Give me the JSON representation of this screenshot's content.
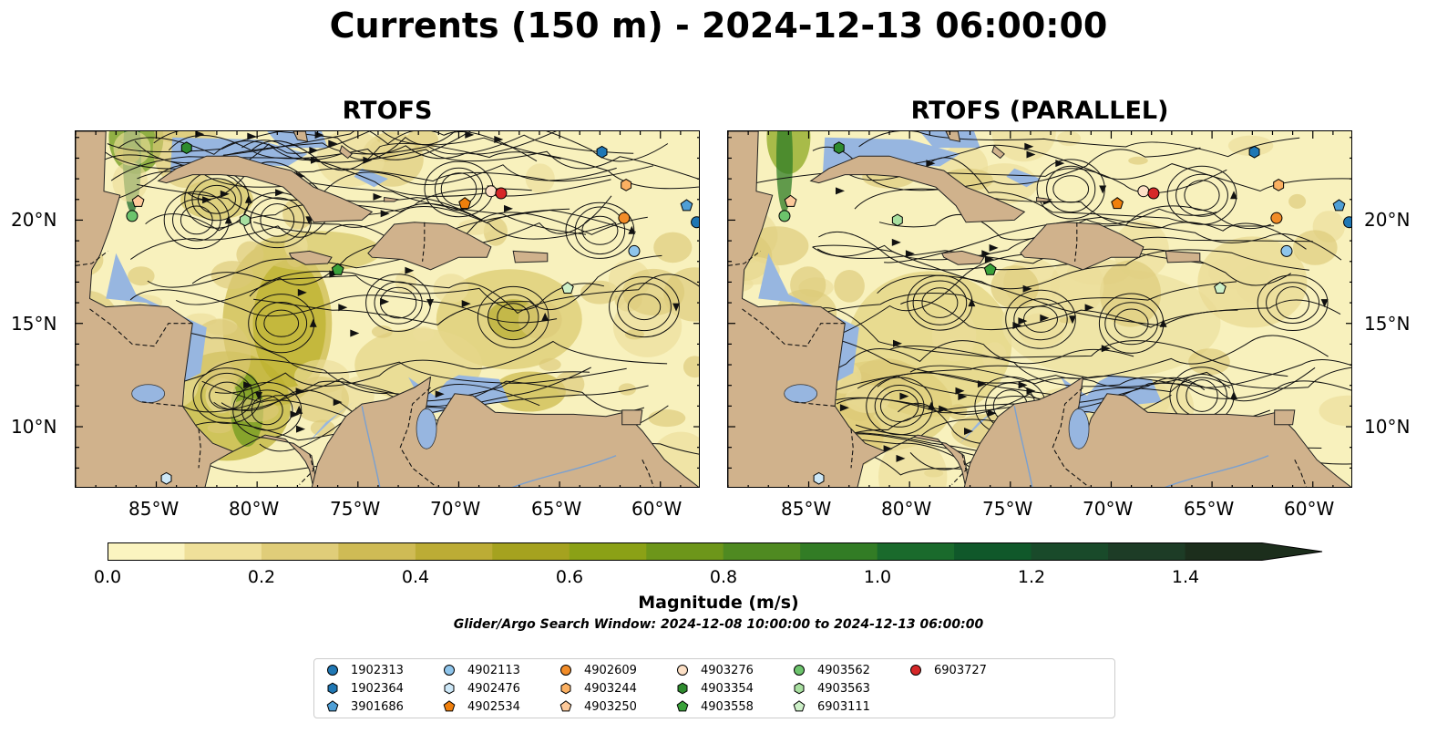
{
  "title": "Currents (150 m) - 2024-12-13 06:00:00",
  "panels": [
    {
      "title": "RTOFS"
    },
    {
      "title": "RTOFS (PARALLEL)"
    }
  ],
  "lat_labels": [
    "20°N",
    "15°N",
    "10°N"
  ],
  "lon_labels": [
    "85°W",
    "80°W",
    "75°W",
    "70°W",
    "65°W",
    "60°W"
  ],
  "map_extent": {
    "lon_min": -89,
    "lon_max": -58,
    "lat_min": 7,
    "lat_max": 24.3
  },
  "colorbar": {
    "label": "Magnitude (m/s)",
    "ticks": [
      "0.0",
      "0.2",
      "0.4",
      "0.6",
      "0.8",
      "1.0",
      "1.2",
      "1.4"
    ],
    "range": [
      0,
      1.5
    ],
    "extend": "max",
    "colors": [
      "#fbf4c0",
      "#efe09a",
      "#e0cd79",
      "#cfbb55",
      "#bcac35",
      "#a5a21f",
      "#8ba116",
      "#6d961a",
      "#4f8a21",
      "#327c25",
      "#1a6a2c",
      "#10582a",
      "#194a2a",
      "#1d3c26",
      "#1c2e1c"
    ]
  },
  "search_window": "Glider/Argo Search Window: 2024-12-08 10:00:00 to 2024-12-13 06:00:00",
  "legend": [
    {
      "id": "1902313",
      "shape": "circle",
      "color": "#1f77b4"
    },
    {
      "id": "1902364",
      "shape": "hexagon",
      "color": "#1f77b4"
    },
    {
      "id": "3901686",
      "shape": "pentagon",
      "color": "#4f9fd6"
    },
    {
      "id": "4902113",
      "shape": "circle",
      "color": "#8ec5ec"
    },
    {
      "id": "4902476",
      "shape": "hexagon",
      "color": "#cde8f8"
    },
    {
      "id": "4902534",
      "shape": "pentagon",
      "color": "#f07f0c"
    },
    {
      "id": "4902609",
      "shape": "circle",
      "color": "#f28c28"
    },
    {
      "id": "4903244",
      "shape": "hexagon",
      "color": "#fbb062"
    },
    {
      "id": "4903250",
      "shape": "pentagon",
      "color": "#fdc99a"
    },
    {
      "id": "4903276",
      "shape": "circle",
      "color": "#fde0c6"
    },
    {
      "id": "4903354",
      "shape": "hexagon",
      "color": "#2e8b2e"
    },
    {
      "id": "4903558",
      "shape": "pentagon",
      "color": "#3aa23a"
    },
    {
      "id": "4903562",
      "shape": "circle",
      "color": "#6cc46c"
    },
    {
      "id": "4903563",
      "shape": "hexagon",
      "color": "#a8e0a0"
    },
    {
      "id": "6903111",
      "shape": "pentagon",
      "color": "#cdf0c8"
    },
    {
      "id": "6903727",
      "shape": "circle",
      "color": "#d62728"
    }
  ],
  "floats": [
    {
      "id": "1902313",
      "lon": -58.2,
      "lat": 19.9
    },
    {
      "id": "1902364",
      "lon": -62.9,
      "lat": 23.3
    },
    {
      "id": "3901686",
      "lon": -58.7,
      "lat": 20.7
    },
    {
      "id": "4902113",
      "lon": -61.3,
      "lat": 18.5
    },
    {
      "id": "4902476",
      "lon": -84.5,
      "lat": 7.5
    },
    {
      "id": "4902534",
      "lon": -69.7,
      "lat": 20.8
    },
    {
      "id": "4902609",
      "lon": -61.8,
      "lat": 20.1
    },
    {
      "id": "4903244",
      "lon": -61.7,
      "lat": 21.7
    },
    {
      "id": "4903250",
      "lon": -85.9,
      "lat": 20.9
    },
    {
      "id": "4903276",
      "lon": -68.4,
      "lat": 21.4
    },
    {
      "id": "4903354",
      "lon": -83.5,
      "lat": 23.5
    },
    {
      "id": "4903558",
      "lon": -76.0,
      "lat": 17.6
    },
    {
      "id": "4903562",
      "lon": -86.2,
      "lat": 20.2
    },
    {
      "id": "4903563",
      "lon": -80.6,
      "lat": 20.0
    },
    {
      "id": "6903111",
      "lon": -64.6,
      "lat": 16.7
    },
    {
      "id": "6903727",
      "lon": -67.9,
      "lat": 21.3
    }
  ]
}
